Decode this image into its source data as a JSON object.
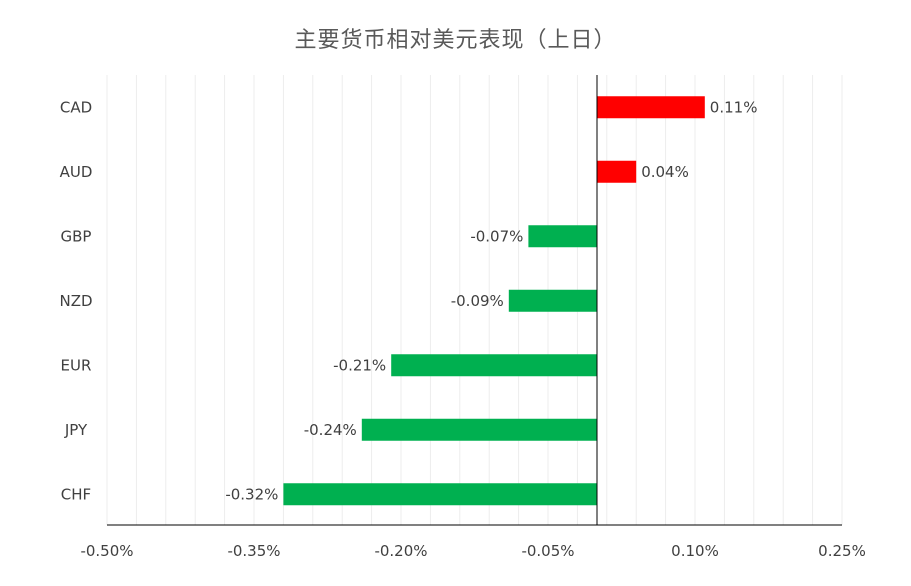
{
  "chart_data": {
    "type": "bar",
    "orientation": "horizontal",
    "title": "主要货币相对美元表现（上日）",
    "xlabel": "",
    "ylabel": "",
    "categories": [
      "CAD",
      "AUD",
      "GBP",
      "NZD",
      "EUR",
      "JPY",
      "CHF"
    ],
    "values": [
      0.11,
      0.04,
      -0.07,
      -0.09,
      -0.21,
      -0.24,
      -0.32
    ],
    "data_labels": [
      "0.11%",
      "0.04%",
      "-0.07%",
      "-0.09%",
      "-0.21%",
      "-0.24%",
      "-0.32%"
    ],
    "xlim": [
      -0.5,
      0.25
    ],
    "xticks": [
      -0.5,
      -0.35,
      -0.2,
      -0.05,
      0.1,
      0.25
    ],
    "xtick_labels": [
      "-0.50%",
      "-0.35%",
      "-0.20%",
      "-0.05%",
      "0.10%",
      "0.25%"
    ],
    "minor_gridline_step": 0.03,
    "grid": true,
    "legend": "none",
    "colors": {
      "positive": "#FF0000",
      "negative": "#00B050",
      "gridline": "#EDEDED",
      "axis": "#000000",
      "text": "#404040",
      "title": "#595959"
    }
  }
}
